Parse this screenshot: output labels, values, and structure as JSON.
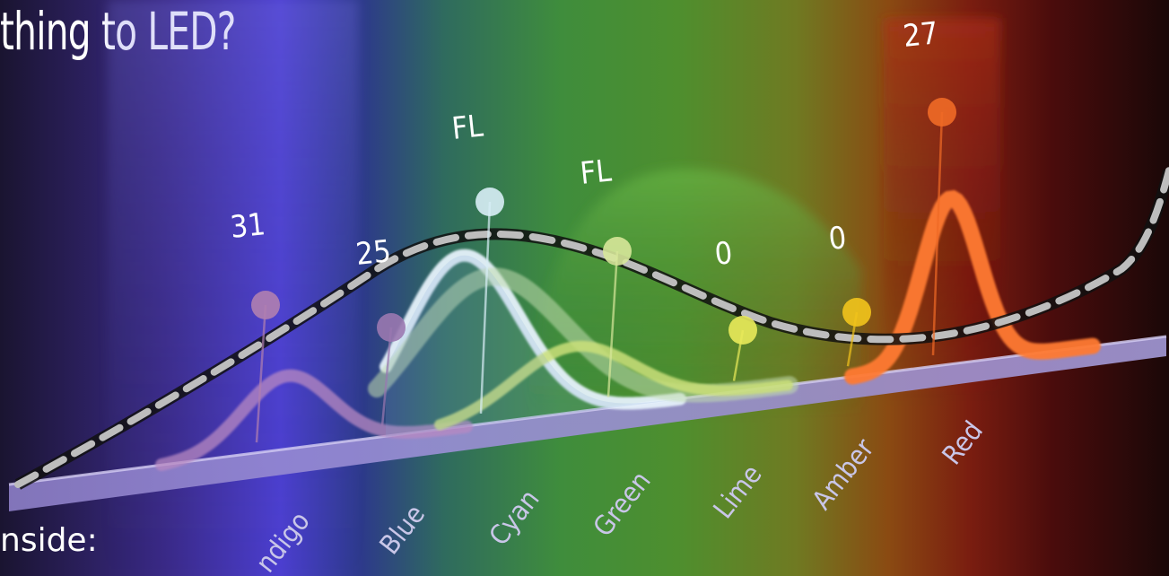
{
  "headline": "thing to LED?",
  "subhead": "nside:",
  "chart_data": {
    "type": "line",
    "title": "",
    "xlabel": "",
    "ylabel": "",
    "categories": [
      "Indigo",
      "Blue",
      "Cyan",
      "Green",
      "Lime",
      "Amber",
      "Red"
    ],
    "category_label_text": [
      "ndigo",
      "Blue",
      "Cyan",
      "Green",
      "Lime",
      "Amber",
      "Red"
    ],
    "annotations": [
      {
        "text": "31",
        "channel": "Indigo",
        "color": "#b07fb0",
        "level": 0.55
      },
      {
        "text": "25",
        "channel": "Blue",
        "color": "#9a78b0",
        "level": 0.45
      },
      {
        "text": "FL",
        "channel": "Blue",
        "color": "#d8eef6",
        "level": 1.0
      },
      {
        "text": "FL",
        "channel": "Cyan",
        "color": "#d7e79a",
        "level": 0.72
      },
      {
        "text": "0",
        "channel": "Lime",
        "color": "#e9ea5a",
        "level": 0.3
      },
      {
        "text": "0",
        "channel": "Amber",
        "color": "#f2c41c",
        "level": 0.2
      },
      {
        "text": "27",
        "channel": "Red",
        "color": "#f06a26",
        "level": 1.0
      }
    ],
    "series": [
      {
        "id": "indigo",
        "color": "#b889c2",
        "peak": 0.48,
        "width": 0.42
      },
      {
        "id": "blue",
        "color": "#e6f2fb",
        "peak": 1.0,
        "width": 0.5
      },
      {
        "id": "cyan",
        "color": "#c2ddb0",
        "peak": 0.8,
        "width": 0.7
      },
      {
        "id": "green",
        "color": "#cbe07a",
        "peak": 0.62,
        "width": 0.7
      },
      {
        "id": "red",
        "color": "#ff7a30",
        "peak": 1.0,
        "width": 0.28
      }
    ],
    "target_curve": {
      "color": "#bdbdbd",
      "dashed": true
    },
    "grid": false,
    "legend": "none"
  }
}
